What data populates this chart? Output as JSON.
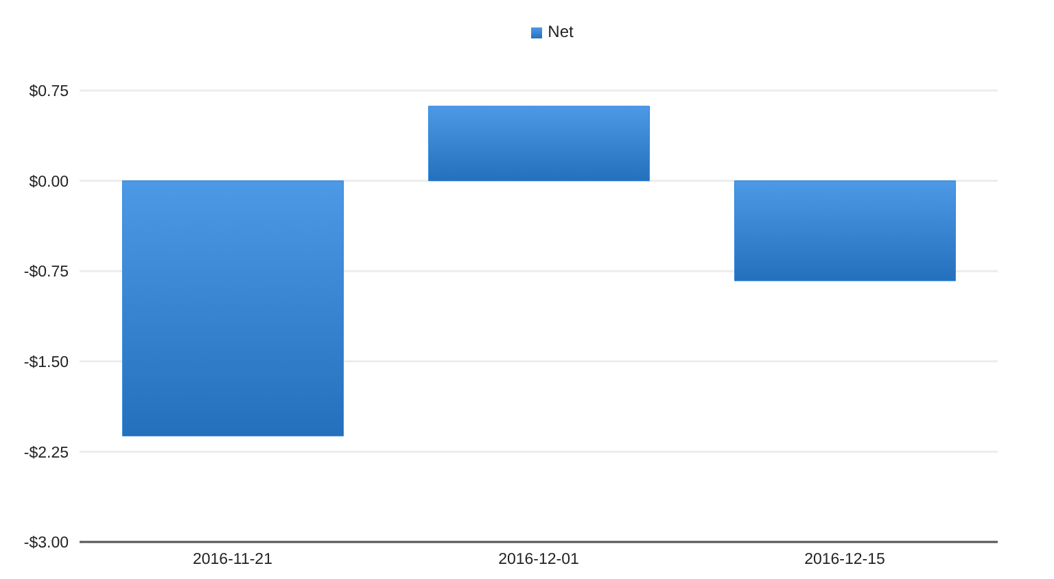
{
  "chart_data": {
    "type": "bar",
    "categories": [
      "2016-11-21",
      "2016-12-01",
      "2016-12-15"
    ],
    "series": [
      {
        "name": "Net",
        "color": "#2b85e0",
        "values": [
          -2.12,
          0.62,
          -0.83
        ]
      }
    ],
    "ylim": [
      -3,
      0.75
    ],
    "yticks": [
      {
        "value": -3,
        "label": "-$3.00"
      },
      {
        "value": -2.25,
        "label": "-$2.25"
      },
      {
        "value": -1.5,
        "label": "-$1.50"
      },
      {
        "value": -0.75,
        "label": "-$0.75"
      },
      {
        "value": 0,
        "label": "$0.00"
      },
      {
        "value": 0.75,
        "label": "$0.75"
      }
    ],
    "grid": "y",
    "legend": "top"
  }
}
